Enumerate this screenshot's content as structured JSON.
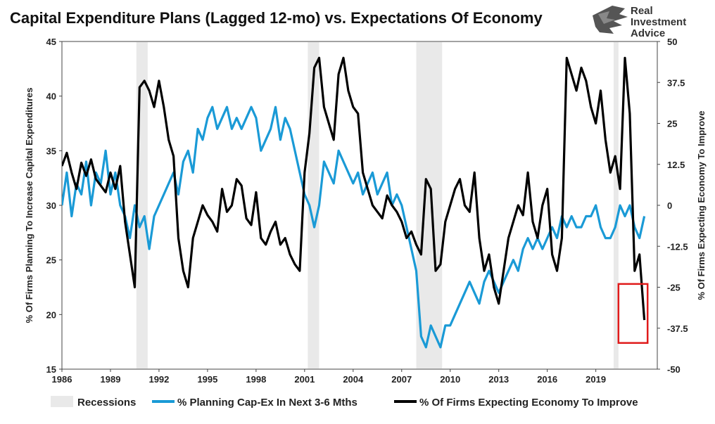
{
  "logo": {
    "line1": "Real",
    "line2": "Investment",
    "line3": "Advice"
  },
  "chart_data": {
    "type": "line",
    "title": "Capital Expenditure Plans (Lagged 12-mo) vs. Expectations Of Economy",
    "ylabel_left": "% Of Firms Planning To Increase Capital Expenditures",
    "ylabel_right": "% Of Firms Expecting Economy To Improve",
    "x_ticks": [
      "1986",
      "1989",
      "1992",
      "1995",
      "1998",
      "2001",
      "2004",
      "2007",
      "2010",
      "2013",
      "2016",
      "2019"
    ],
    "x_range": [
      1986,
      2022.8
    ],
    "y_left_range": [
      15,
      45
    ],
    "y_left_ticks": [
      "15",
      "20",
      "25",
      "30",
      "35",
      "40",
      "45"
    ],
    "y_right_range": [
      -50,
      50
    ],
    "y_right_ticks": [
      "-50",
      "-37.5",
      "-25",
      "-12.5",
      "0",
      "12.5",
      "25",
      "37.5",
      "50"
    ],
    "recessions": [
      [
        1990.6,
        1991.3
      ],
      [
        2001.2,
        2001.9
      ],
      [
        2007.9,
        2009.5
      ],
      [
        2020.1,
        2020.4
      ]
    ],
    "legend": [
      "Recessions",
      "% Planning Cap-Ex In Next 3-6 Mths",
      "% Of Firms Expecting Economy To Improve"
    ],
    "colors": {
      "capex": "#1a9ad6",
      "economy": "#000000",
      "recession": "#e9e9e9",
      "highlight_box": "#e01b1b"
    },
    "highlight_box": {
      "x_range": [
        2020.4,
        2022.2
      ],
      "y_right_range": [
        -24,
        -42
      ]
    },
    "series": [
      {
        "name": "% Planning Cap-Ex In Next 3-6 Mths",
        "axis": "left",
        "x": [
          1986.0,
          1986.3,
          1986.6,
          1986.9,
          1987.2,
          1987.5,
          1987.8,
          1988.1,
          1988.4,
          1988.7,
          1989.0,
          1989.3,
          1989.6,
          1989.9,
          1990.2,
          1990.5,
          1990.8,
          1991.1,
          1991.4,
          1991.7,
          1992.0,
          1992.3,
          1992.6,
          1992.9,
          1993.2,
          1993.5,
          1993.8,
          1994.1,
          1994.4,
          1994.7,
          1995.0,
          1995.3,
          1995.6,
          1995.9,
          1996.2,
          1996.5,
          1996.8,
          1997.1,
          1997.4,
          1997.7,
          1998.0,
          1998.3,
          1998.6,
          1998.9,
          1999.2,
          1999.5,
          1999.8,
          2000.1,
          2000.4,
          2000.7,
          2001.0,
          2001.3,
          2001.6,
          2001.9,
          2002.2,
          2002.5,
          2002.8,
          2003.1,
          2003.4,
          2003.7,
          2004.0,
          2004.3,
          2004.6,
          2004.9,
          2005.2,
          2005.5,
          2005.8,
          2006.1,
          2006.4,
          2006.7,
          2007.0,
          2007.3,
          2007.6,
          2007.9,
          2008.2,
          2008.5,
          2008.8,
          2009.1,
          2009.4,
          2009.7,
          2010.0,
          2010.3,
          2010.6,
          2010.9,
          2011.2,
          2011.5,
          2011.8,
          2012.1,
          2012.4,
          2012.7,
          2013.0,
          2013.3,
          2013.6,
          2013.9,
          2014.2,
          2014.5,
          2014.8,
          2015.1,
          2015.4,
          2015.7,
          2016.0,
          2016.3,
          2016.6,
          2016.9,
          2017.2,
          2017.5,
          2017.8,
          2018.1,
          2018.4,
          2018.7,
          2019.0,
          2019.3,
          2019.6,
          2019.9,
          2020.2,
          2020.5,
          2020.8,
          2021.1,
          2021.4,
          2021.7,
          2022.0
        ],
        "values": [
          30,
          33,
          29,
          32,
          31,
          34,
          30,
          33,
          32,
          35,
          31,
          33,
          30,
          29,
          27,
          30,
          28,
          29,
          26,
          29,
          30,
          31,
          32,
          33,
          31,
          34,
          35,
          33,
          37,
          36,
          38,
          39,
          37,
          38,
          39,
          37,
          38,
          37,
          38,
          39,
          38,
          35,
          36,
          37,
          39,
          36,
          38,
          37,
          35,
          33,
          31,
          30,
          28,
          30,
          34,
          33,
          32,
          35,
          34,
          33,
          32,
          33,
          31,
          32,
          33,
          31,
          32,
          33,
          30,
          31,
          30,
          28,
          26,
          24,
          18,
          17,
          19,
          18,
          17,
          19,
          19,
          20,
          21,
          22,
          23,
          22,
          21,
          23,
          24,
          23,
          22,
          23,
          24,
          25,
          24,
          26,
          27,
          26,
          27,
          26,
          27,
          28,
          27,
          29,
          28,
          29,
          28,
          28,
          29,
          29,
          30,
          28,
          27,
          27,
          28,
          30,
          29,
          30,
          28,
          27,
          29
        ]
      },
      {
        "name": "% Of Firms Expecting Economy To Improve",
        "axis": "right",
        "x": [
          1986.0,
          1986.3,
          1986.6,
          1986.9,
          1987.2,
          1987.5,
          1987.8,
          1988.1,
          1988.4,
          1988.7,
          1989.0,
          1989.3,
          1989.6,
          1989.9,
          1990.2,
          1990.5,
          1990.8,
          1991.1,
          1991.4,
          1991.7,
          1992.0,
          1992.3,
          1992.6,
          1992.9,
          1993.2,
          1993.5,
          1993.8,
          1994.1,
          1994.4,
          1994.7,
          1995.0,
          1995.3,
          1995.6,
          1995.9,
          1996.2,
          1996.5,
          1996.8,
          1997.1,
          1997.4,
          1997.7,
          1998.0,
          1998.3,
          1998.6,
          1998.9,
          1999.2,
          1999.5,
          1999.8,
          2000.1,
          2000.4,
          2000.7,
          2001.0,
          2001.3,
          2001.6,
          2001.9,
          2002.2,
          2002.5,
          2002.8,
          2003.1,
          2003.4,
          2003.7,
          2004.0,
          2004.3,
          2004.6,
          2004.9,
          2005.2,
          2005.5,
          2005.8,
          2006.1,
          2006.4,
          2006.7,
          2007.0,
          2007.3,
          2007.6,
          2007.9,
          2008.2,
          2008.5,
          2008.8,
          2009.1,
          2009.4,
          2009.7,
          2010.0,
          2010.3,
          2010.6,
          2010.9,
          2011.2,
          2011.5,
          2011.8,
          2012.1,
          2012.4,
          2012.7,
          2013.0,
          2013.3,
          2013.6,
          2013.9,
          2014.2,
          2014.5,
          2014.8,
          2015.1,
          2015.4,
          2015.7,
          2016.0,
          2016.3,
          2016.6,
          2016.9,
          2017.2,
          2017.5,
          2017.8,
          2018.1,
          2018.4,
          2018.7,
          2019.0,
          2019.3,
          2019.6,
          2019.9,
          2020.2,
          2020.5,
          2020.8,
          2021.1,
          2021.4,
          2021.7,
          2022.0
        ],
        "values": [
          12,
          16,
          10,
          5,
          13,
          9,
          14,
          8,
          6,
          4,
          10,
          5,
          12,
          -5,
          -15,
          -25,
          36,
          38,
          35,
          30,
          38,
          30,
          20,
          15,
          -10,
          -20,
          -25,
          -10,
          -5,
          0,
          -3,
          -5,
          -8,
          5,
          -2,
          0,
          8,
          6,
          -4,
          -6,
          4,
          -10,
          -12,
          -8,
          -5,
          -12,
          -10,
          -15,
          -18,
          -20,
          10,
          22,
          42,
          45,
          30,
          25,
          20,
          40,
          45,
          35,
          30,
          28,
          10,
          5,
          0,
          -2,
          -4,
          3,
          0,
          -2,
          -5,
          -10,
          -8,
          -12,
          -15,
          8,
          5,
          -20,
          -18,
          -5,
          0,
          5,
          8,
          0,
          -2,
          10,
          -10,
          -20,
          -15,
          -25,
          -30,
          -20,
          -10,
          -5,
          0,
          -3,
          10,
          -5,
          -10,
          0,
          5,
          -15,
          -20,
          -10,
          45,
          40,
          35,
          42,
          38,
          30,
          25,
          35,
          20,
          10,
          15,
          5,
          45,
          28,
          -20,
          -15,
          -35
        ]
      }
    ]
  }
}
